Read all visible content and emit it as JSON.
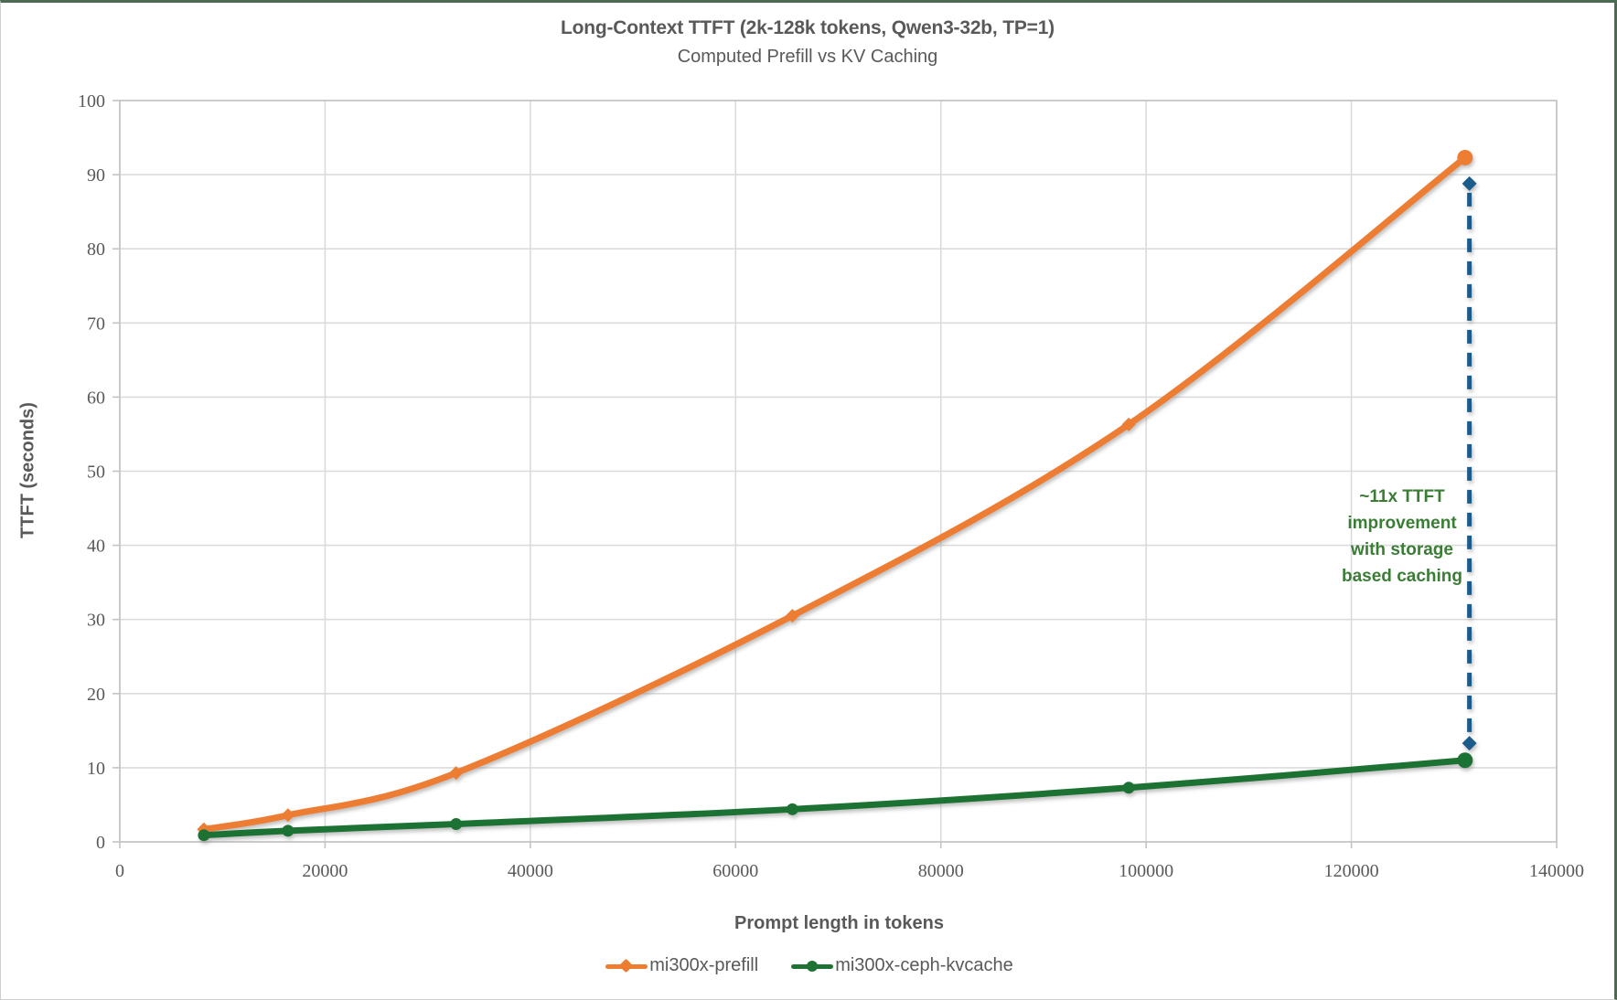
{
  "header": {
    "title": "Long-Context TTFT (2k-128k tokens, Qwen3-32b, TP=1)",
    "subtitle": "Computed Prefill vs KV Caching"
  },
  "colors": {
    "prefill_orange": "#ED7D31",
    "kvcache_green": "#1E7233",
    "annotation_green": "#3A7D35",
    "annotation_blue": "#1F5C8B",
    "axis_text_gray": "#595959",
    "gridline_gray": "#DBDBDB",
    "plot_border_gray": "#C3C3C3",
    "frame_accent_green": "#4C6A52"
  },
  "chart_data": {
    "type": "line",
    "x": [
      8192,
      16384,
      32768,
      65536,
      98304,
      131072
    ],
    "series": [
      {
        "name": "mi300x-prefill",
        "color": "#ED7D31",
        "marker": "diamond",
        "last_marker": "circle",
        "values": [
          1.7,
          3.6,
          9.3,
          30.5,
          56.3,
          92.3
        ]
      },
      {
        "name": "mi300x-ceph-kvcache",
        "color": "#1E7233",
        "marker": "circle",
        "last_marker": "circle",
        "values": [
          0.9,
          1.5,
          2.4,
          4.4,
          7.3,
          11.0
        ]
      }
    ],
    "title": "Long-Context TTFT (2k-128k tokens, Qwen3-32b, TP=1)",
    "subtitle": "Computed Prefill vs KV Caching",
    "xlabel": "Prompt length in tokens",
    "ylabel": "TTFT (seconds)",
    "xlim": [
      0,
      140000
    ],
    "ylim": [
      0,
      100
    ],
    "x_ticks": [
      0,
      20000,
      40000,
      60000,
      80000,
      100000,
      120000,
      140000
    ],
    "y_ticks": [
      0,
      10,
      20,
      30,
      40,
      50,
      60,
      70,
      80,
      90,
      100
    ],
    "grid": true,
    "legend_position": "bottom",
    "smooth_lines": true,
    "annotation": {
      "lines": [
        "~11x TTFT",
        "improvement",
        "with storage",
        "based caching"
      ],
      "color": "#3A7D35",
      "dashed_line": {
        "x_tokens": 131500,
        "y_from": 13.3,
        "y_to": 88.8,
        "color": "#1F5C8B"
      }
    }
  }
}
